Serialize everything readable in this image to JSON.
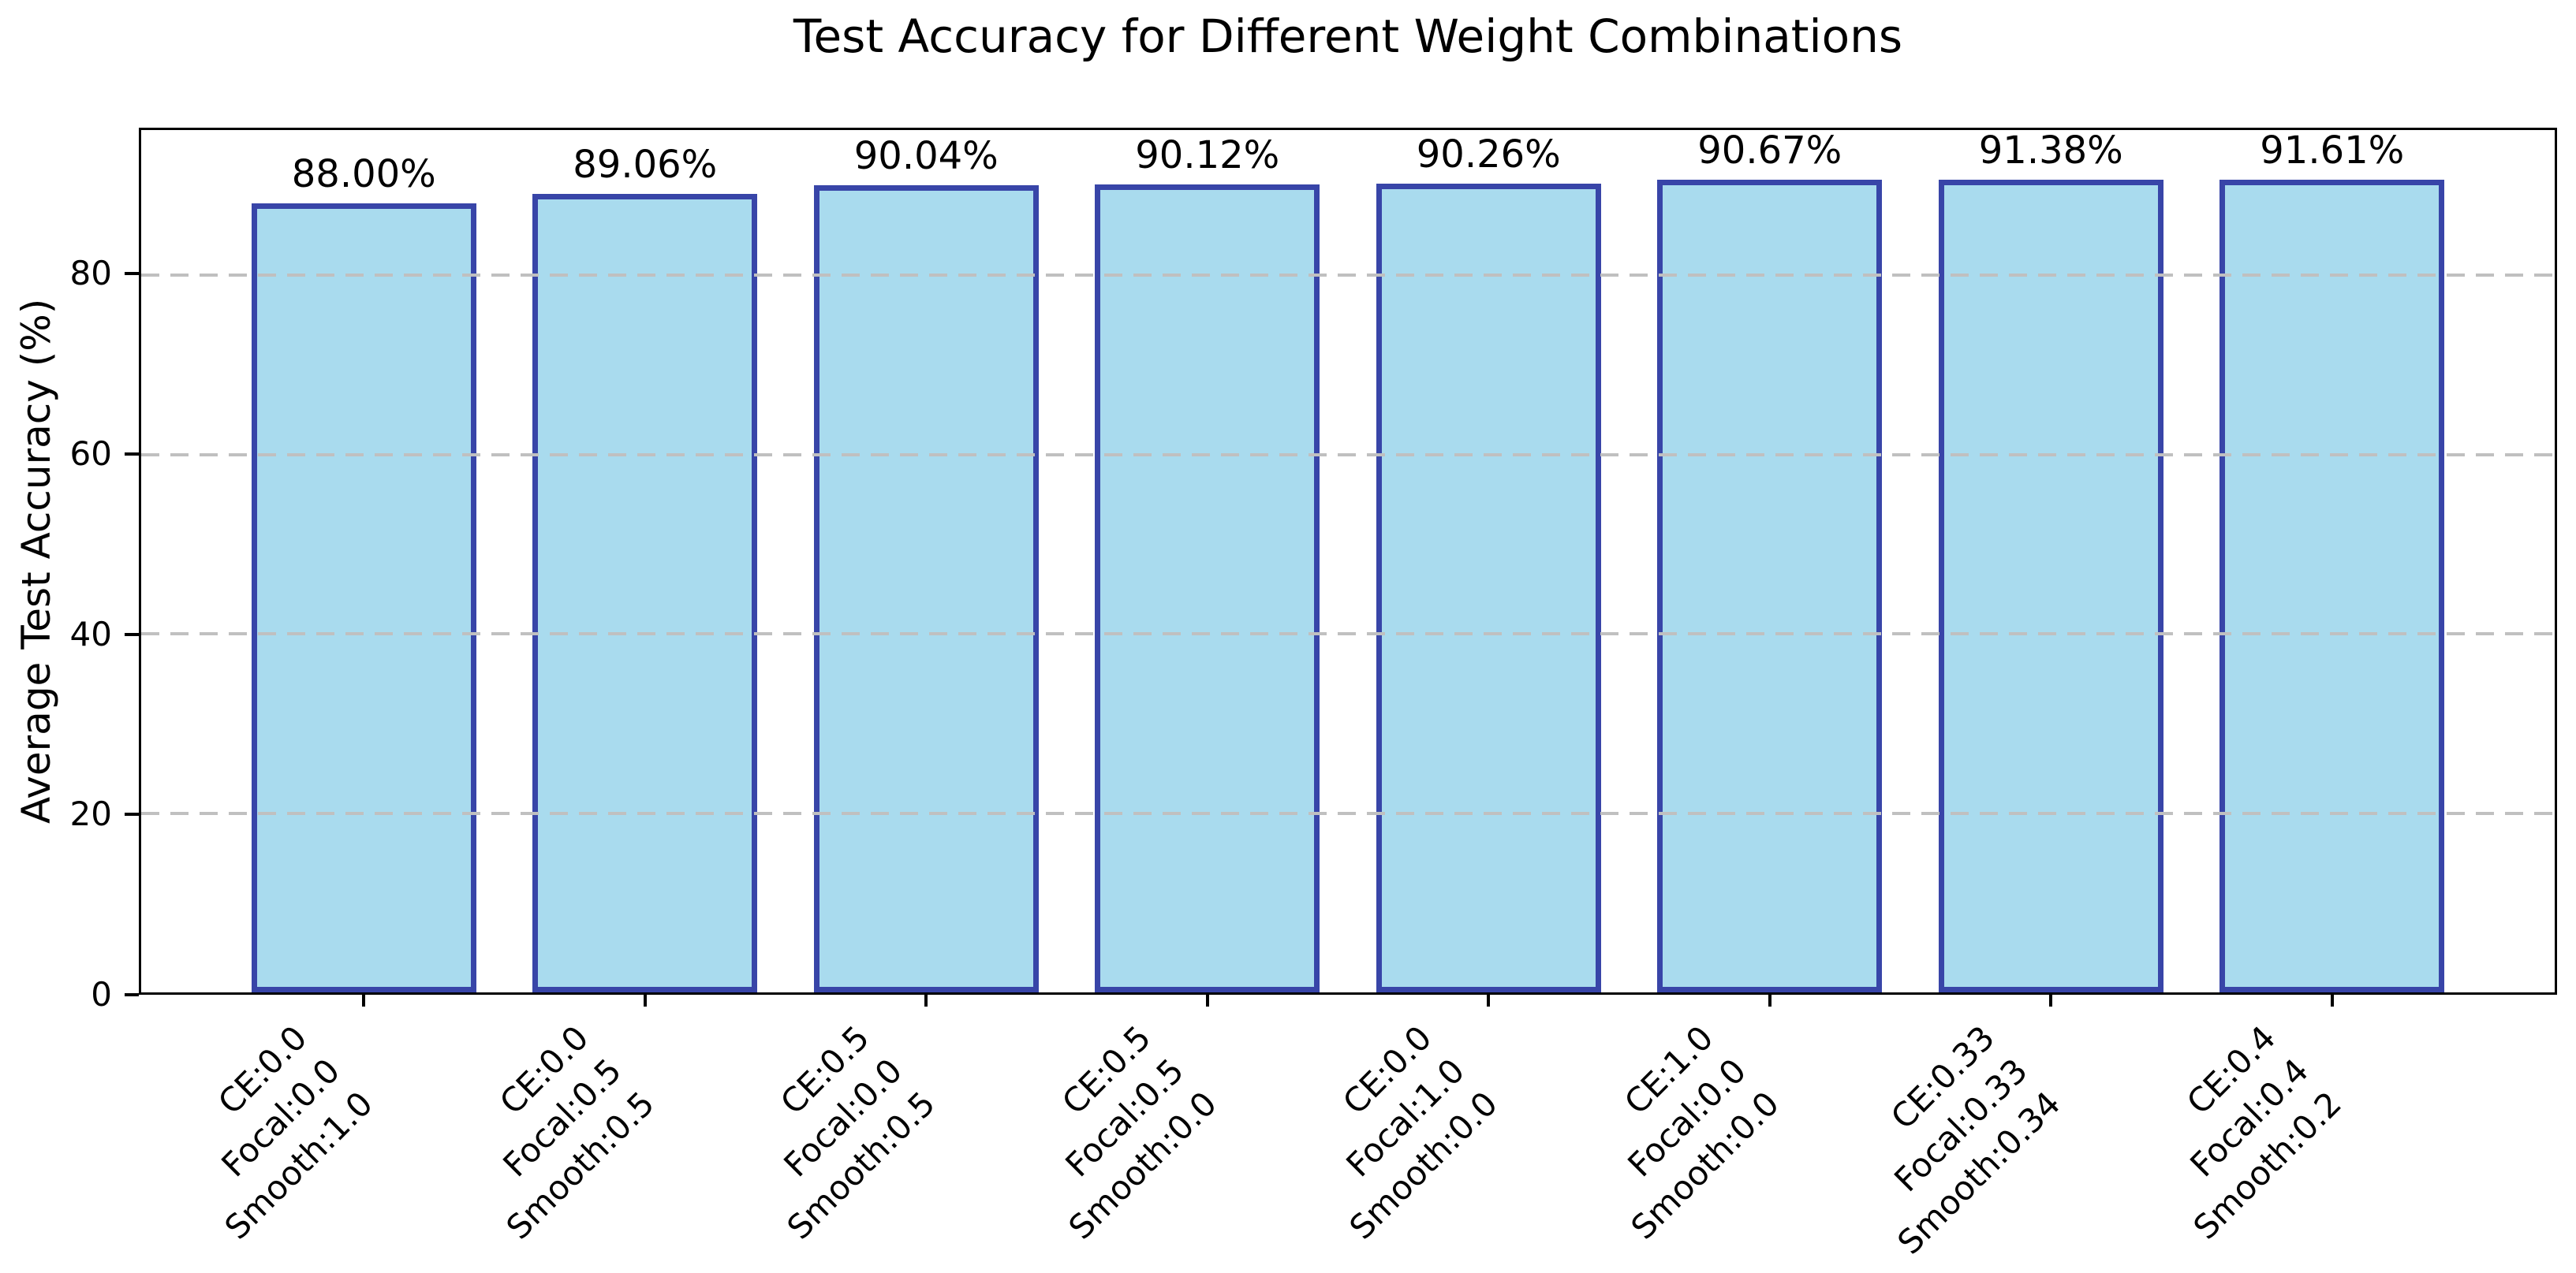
{
  "chart_data": {
    "type": "bar",
    "title": "Test Accuracy for Different Weight Combinations",
    "xlabel": "",
    "ylabel": "Average Test Accuracy (%)",
    "ylim": [
      0,
      96.2
    ],
    "yticks": [
      0,
      20,
      40,
      60,
      80
    ],
    "grid": "horizontal dashed gridlines at yticks, drawn above bars",
    "legend": "none",
    "categories": [
      [
        "CE:0.0",
        "Focal:0.0",
        "Smooth:1.0"
      ],
      [
        "CE:0.0",
        "Focal:0.5",
        "Smooth:0.5"
      ],
      [
        "CE:0.5",
        "Focal:0.0",
        "Smooth:0.5"
      ],
      [
        "CE:0.5",
        "Focal:0.5",
        "Smooth:0.0"
      ],
      [
        "CE:0.0",
        "Focal:1.0",
        "Smooth:0.0"
      ],
      [
        "CE:1.0",
        "Focal:0.0",
        "Smooth:0.0"
      ],
      [
        "CE:0.33",
        "Focal:0.33",
        "Smooth:0.34"
      ],
      [
        "CE:0.4",
        "Focal:0.4",
        "Smooth:0.2"
      ]
    ],
    "values": [
      88.0,
      89.06,
      90.04,
      90.12,
      90.26,
      90.67,
      91.38,
      91.61
    ],
    "value_labels": [
      "88.00%",
      "89.06%",
      "90.04%",
      "90.12%",
      "90.26%",
      "90.67%",
      "91.38%",
      "91.61%"
    ],
    "colors": {
      "bar_fill": "#A9DBEE",
      "bar_edge": "#3845A8",
      "gridline": "#C0C0C0",
      "spine": "#000000",
      "text": "#000000"
    }
  }
}
